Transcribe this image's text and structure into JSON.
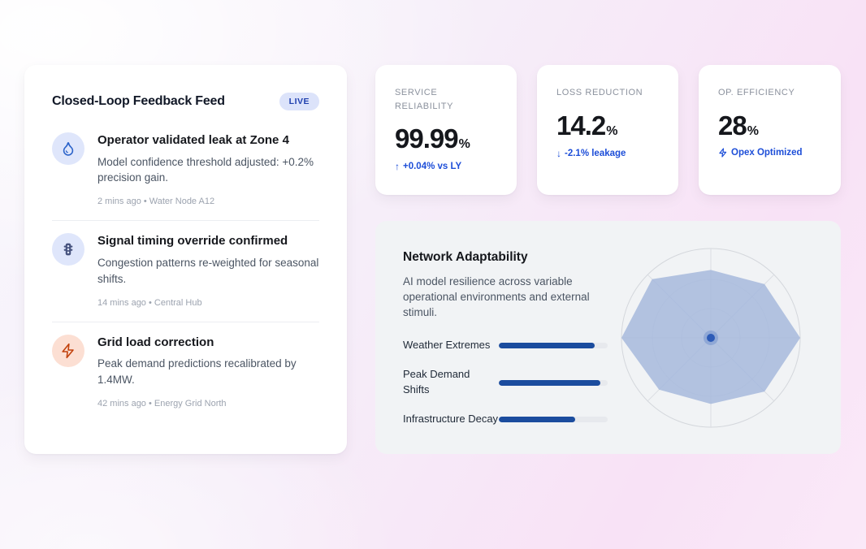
{
  "feed": {
    "title": "Closed-Loop Feedback Feed",
    "badge": "LIVE",
    "items": [
      {
        "icon": "droplet-icon",
        "title": "Operator validated leak at Zone 4",
        "description": "Model confidence threshold adjusted: +0.2% precision gain.",
        "meta": "2 mins ago • Water Node A12"
      },
      {
        "icon": "traffic-light-icon",
        "title": "Signal timing override confirmed",
        "description": "Congestion patterns re-weighted for seasonal shifts.",
        "meta": "14 mins ago • Central Hub"
      },
      {
        "icon": "zap-icon",
        "title": "Grid load correction",
        "description": "Peak demand predictions recalibrated by 1.4MW.",
        "meta": "42 mins ago • Energy Grid North"
      }
    ]
  },
  "kpis": [
    {
      "label": "Service Reliability",
      "value": "99.99",
      "unit": "%",
      "arrow": "↑",
      "delta": "+0.04% vs LY"
    },
    {
      "label": "Loss Reduction",
      "value": "14.2",
      "unit": "%",
      "arrow": "↓",
      "delta": "-2.1% leakage"
    },
    {
      "label": "Op. Efficiency",
      "value": "28",
      "unit": "%",
      "arrow": "",
      "delta": "Opex Optimized"
    }
  ],
  "adaptability": {
    "title": "Network Adaptability",
    "description": "AI model resilience across variable operational environments and external stimuli.",
    "bars": [
      {
        "label": "Weather Extremes",
        "percent": 88
      },
      {
        "label": "Peak Demand Shifts",
        "percent": 93
      },
      {
        "label": "Infrastructure Decay",
        "percent": 70
      }
    ]
  },
  "chart_data": [
    {
      "type": "bar",
      "orientation": "horizontal",
      "title": "Network Adaptability",
      "categories": [
        "Weather Extremes",
        "Peak Demand Shifts",
        "Infrastructure Decay"
      ],
      "values": [
        88,
        93,
        70
      ],
      "xlim": [
        0,
        100
      ],
      "grid": false,
      "legend": false
    },
    {
      "type": "radar",
      "title": "Network Adaptability resilience polygon",
      "axes_count": 8,
      "values_clockwise_from_top": [
        0.76,
        0.85,
        1.0,
        0.85,
        0.74,
        0.82,
        1.0,
        0.93
      ],
      "max": 1.0,
      "rings": [
        0.33,
        0.66,
        1.0
      ],
      "axis_labels_visible": false,
      "center_marker": true
    }
  ],
  "colors": {
    "accent_blue": "#1d4ed8",
    "bar_blue": "#1b4c9e",
    "radar_fill": "#a3b7dc",
    "radar_dot": "#2d5bb7",
    "badge_bg": "#dce3fa",
    "badge_text": "#1e3fae",
    "icon_circle_blue": "#dfe6fb",
    "icon_circle_orange": "#fcdfd3",
    "zap_orange": "#c2410c",
    "card_gray": "#f1f3f5"
  }
}
